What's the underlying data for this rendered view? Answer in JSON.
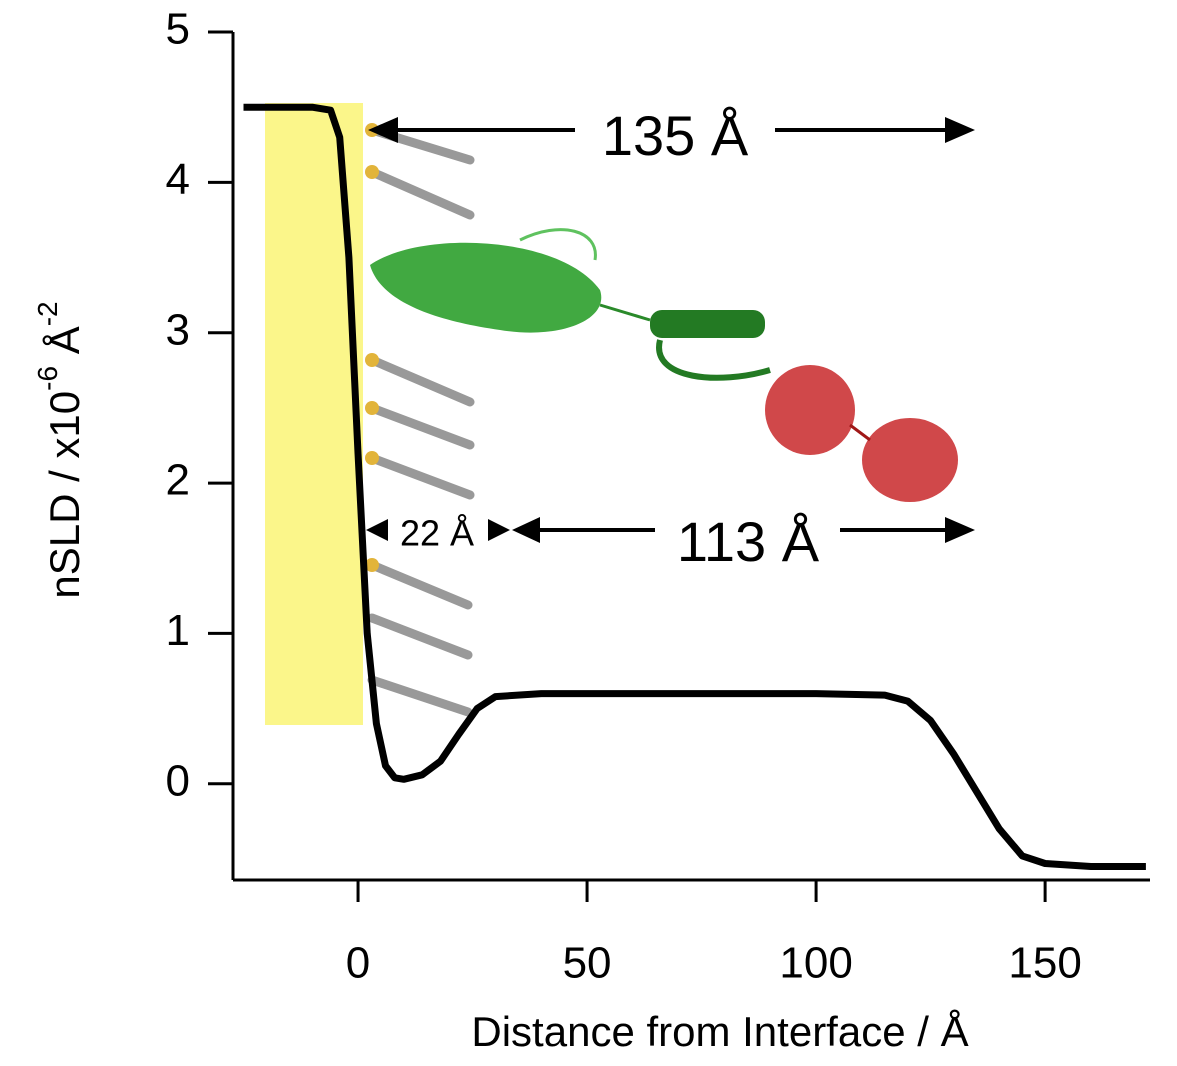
{
  "chart_data": {
    "type": "line",
    "x": [
      -25,
      -10,
      -6,
      -4,
      -2,
      0,
      2,
      4,
      6,
      8,
      10,
      14,
      18,
      22,
      26,
      30,
      40,
      60,
      80,
      100,
      115,
      120,
      125,
      130,
      135,
      140,
      145,
      150,
      160,
      172
    ],
    "values": [
      4.5,
      4.5,
      4.48,
      4.3,
      3.5,
      2.2,
      1.0,
      0.4,
      0.12,
      0.04,
      0.03,
      0.06,
      0.15,
      0.33,
      0.5,
      0.58,
      0.6,
      0.6,
      0.6,
      0.6,
      0.59,
      0.55,
      0.42,
      0.2,
      -0.05,
      -0.3,
      -0.48,
      -0.53,
      -0.55,
      -0.55
    ],
    "color": "#000000",
    "xlim": [
      -27.3,
      172.9
    ],
    "ylim": [
      -0.64,
      5
    ],
    "xticks": [
      0,
      50,
      100,
      150
    ],
    "yticks": [
      0,
      1,
      2,
      3,
      4,
      5
    ],
    "xlabel": "Distance from Interface / Å",
    "ylabel": [
      "nSLD / x10",
      "-6",
      " Å",
      "-2"
    ],
    "annotations": [
      "135 Å",
      "22 Å",
      "113 Å"
    ]
  }
}
